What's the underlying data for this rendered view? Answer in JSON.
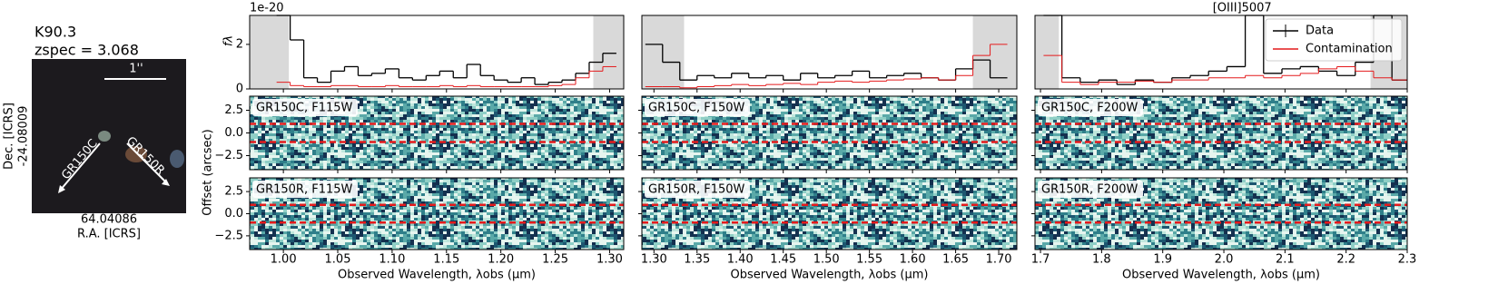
{
  "cutout": {
    "title": "K90.3",
    "redshift": "zspec = 3.068",
    "scale": "1''",
    "grism_c": "GR150C",
    "grism_r": "GR150R",
    "dec_label": "Dec. [ICRS]",
    "dec_value": "-24.08009",
    "ra_value": "64.04086",
    "ra_label": "R.A. [ICRS]"
  },
  "chart_data": [
    {
      "type": "line",
      "ylabel": "fλ",
      "y_exponent": "1e-20",
      "xlabel": "Observed Wavelength, λobs (μm)",
      "xlim": [
        0.969,
        1.313
      ],
      "ylim": [
        0,
        3.3
      ],
      "yticks": [
        0,
        2
      ],
      "xticks": [
        {
          "value": 1.0,
          "label": "1.00"
        },
        1.05,
        {
          "value": 1.1,
          "label": "1.10"
        },
        1.15,
        {
          "value": 1.2,
          "label": "1.20"
        },
        1.25,
        {
          "value": 1.3,
          "label": "1.30"
        }
      ],
      "shaded": [
        [
          0.969,
          1.005
        ],
        [
          1.285,
          1.313
        ]
      ],
      "x": [
        1.0,
        1.0125,
        1.025,
        1.0375,
        1.05,
        1.0625,
        1.075,
        1.0875,
        1.1,
        1.1125,
        1.125,
        1.1375,
        1.15,
        1.1625,
        1.175,
        1.1875,
        1.2,
        1.2125,
        1.225,
        1.2375,
        1.25,
        1.2625,
        1.275,
        1.2875,
        1.3
      ],
      "series": [
        {
          "color": "#000000",
          "values": [
            3.3,
            2.2,
            0.5,
            0.3,
            0.8,
            1.0,
            0.6,
            0.7,
            0.9,
            0.5,
            0.4,
            0.6,
            0.8,
            0.5,
            1.1,
            0.6,
            0.4,
            0.3,
            0.5,
            0.2,
            0.3,
            0.4,
            0.7,
            1.2,
            1.6
          ]
        },
        {
          "color": "#e41a1c",
          "values": [
            0.3,
            0.15,
            0.1,
            0.1,
            0.15,
            0.15,
            0.1,
            0.1,
            0.15,
            0.1,
            0.1,
            0.1,
            0.15,
            0.1,
            0.15,
            0.1,
            0.1,
            0.1,
            0.1,
            0.1,
            0.15,
            0.2,
            0.5,
            0.8,
            1.0
          ]
        }
      ]
    },
    {
      "type": "line",
      "xlabel": "Observed Wavelength, λobs (μm)",
      "xlim": [
        1.286,
        1.721
      ],
      "ylim": [
        0,
        3.3
      ],
      "xticks": [
        {
          "value": 1.3,
          "label": "1.30"
        },
        1.35,
        {
          "value": 1.4,
          "label": "1.40"
        },
        1.45,
        {
          "value": 1.5,
          "label": "1.50"
        },
        1.55,
        {
          "value": 1.6,
          "label": "1.60"
        },
        1.65,
        {
          "value": 1.7,
          "label": "1.70"
        }
      ],
      "shaded": [
        [
          1.286,
          1.335
        ],
        [
          1.67,
          1.721
        ]
      ],
      "x": [
        1.3,
        1.32,
        1.34,
        1.36,
        1.38,
        1.4,
        1.42,
        1.44,
        1.46,
        1.48,
        1.5,
        1.52,
        1.54,
        1.56,
        1.58,
        1.6,
        1.62,
        1.64,
        1.66,
        1.68,
        1.7
      ],
      "series": [
        {
          "color": "#000000",
          "values": [
            2.0,
            1.2,
            0.4,
            0.6,
            0.5,
            0.7,
            0.5,
            0.6,
            0.4,
            0.7,
            0.5,
            0.6,
            0.8,
            0.5,
            0.6,
            0.7,
            0.5,
            0.4,
            0.9,
            1.3,
            0.5
          ]
        },
        {
          "color": "#e41a1c",
          "values": [
            0.1,
            0.1,
            0.05,
            0.1,
            0.15,
            0.2,
            0.15,
            0.2,
            0.25,
            0.2,
            0.3,
            0.35,
            0.3,
            0.35,
            0.4,
            0.45,
            0.5,
            0.4,
            0.6,
            1.5,
            2.0
          ]
        }
      ]
    },
    {
      "type": "line",
      "xlabel": "Observed Wavelength, λobs (μm)",
      "xlim": [
        1.691,
        2.3
      ],
      "ylim": [
        0,
        3.3
      ],
      "xticks": [
        1.7,
        1.8,
        1.9,
        {
          "value": 2.0,
          "label": "2.0"
        },
        2.1,
        2.2,
        2.3
      ],
      "shaded": [
        [
          1.691,
          1.73
        ],
        [
          2.24,
          2.3
        ]
      ],
      "annotation": "[OIII]5007",
      "annotation_x": 2.03,
      "legend": "upper right",
      "x": [
        1.72,
        1.75,
        1.78,
        1.81,
        1.84,
        1.87,
        1.9,
        1.93,
        1.96,
        1.99,
        2.02,
        2.05,
        2.08,
        2.11,
        2.14,
        2.17,
        2.2,
        2.23,
        2.26,
        2.29
      ],
      "series": [
        {
          "name": "Data",
          "color": "#000000",
          "values": [
            3.3,
            0.5,
            0.3,
            0.4,
            0.2,
            0.4,
            0.3,
            0.5,
            0.6,
            0.8,
            1.0,
            3.3,
            0.7,
            0.9,
            1.0,
            0.8,
            0.6,
            1.2,
            3.3,
            0.4
          ]
        },
        {
          "name": "Contamination",
          "color": "#e41a1c",
          "values": [
            1.5,
            0.3,
            0.2,
            0.3,
            0.3,
            0.35,
            0.3,
            0.4,
            0.4,
            0.5,
            0.5,
            0.6,
            0.5,
            0.6,
            0.7,
            0.9,
            1.0,
            0.8,
            0.5,
            0.4
          ]
        }
      ]
    }
  ],
  "spectra2d": {
    "ylabel": "Offset (arcsec)",
    "ylim": [
      -4.05,
      4.05
    ],
    "yticks": [
      2.5,
      {
        "value": 0,
        "label": "0.0"
      },
      {
        "value": -2.5,
        "label": "−2.5"
      }
    ],
    "trace": [
      1,
      -1
    ],
    "labels": [
      [
        "GR150C, F115W",
        "GR150R, F115W"
      ],
      [
        "GR150C, F150W",
        "GR150R, F150W"
      ],
      [
        "GR150C, F200W",
        "GR150R, F200W"
      ]
    ]
  }
}
